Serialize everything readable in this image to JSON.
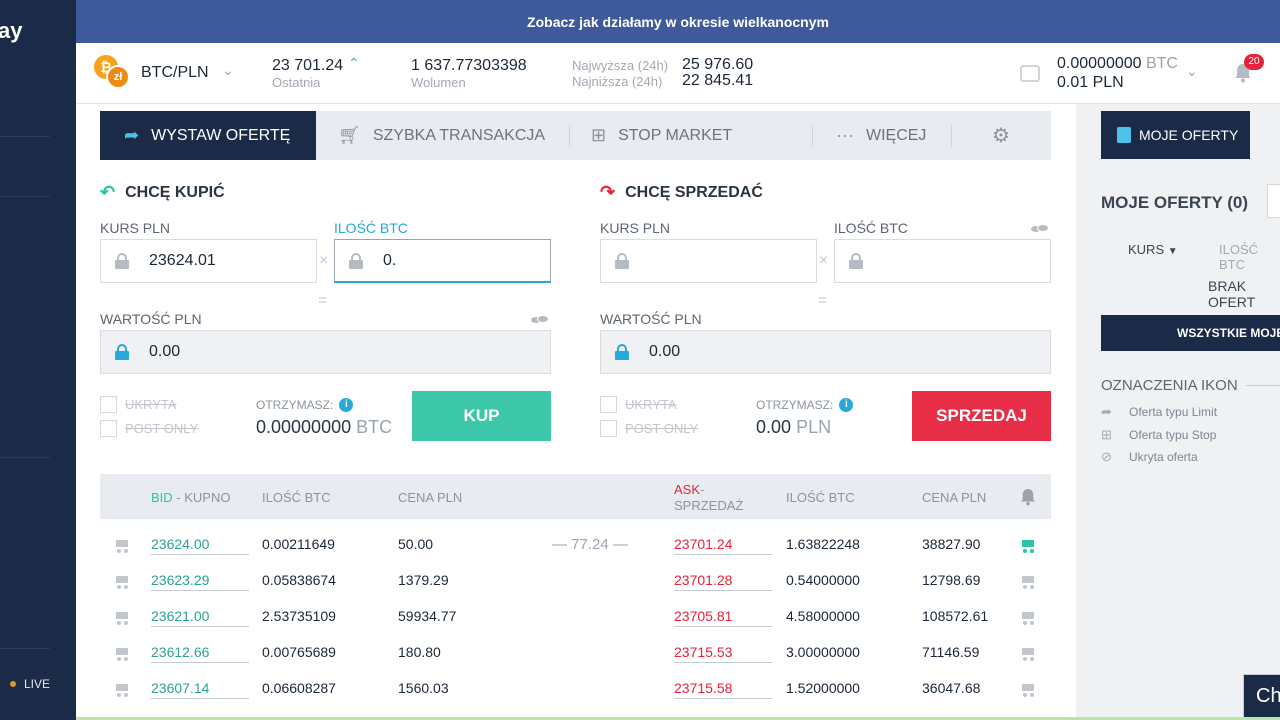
{
  "sidebar": {
    "brand": "ay",
    "live": "LIVE"
  },
  "banner": {
    "text": "Zobacz jak działamy w okresie wielkanocnym"
  },
  "ticker": {
    "pair": "BTC/PLN",
    "last_value": "23 701.24",
    "last_label": "Ostatnia",
    "volume_value": "1 637.77303398",
    "volume_label": "Wolumen",
    "high_label": "Najwyższa (24h)",
    "high_value": "25 976.60",
    "low_label": "Najniższa (24h)",
    "low_value": "22 845.41",
    "balance_btc": "0.00000000",
    "balance_btc_unit": "BTC",
    "balance_pln": "0.01",
    "balance_pln_unit": "PLN",
    "notifications": "20"
  },
  "tabs": {
    "place_offer": "WYSTAW OFERTĘ",
    "quick": "SZYBKA TRANSAKCJA",
    "stop": "STOP MARKET",
    "more": "WIĘCEJ"
  },
  "buy": {
    "title": "CHCĘ KUPIĆ",
    "rate_label": "KURS PLN",
    "rate_value": "23624.01",
    "amount_label": "ILOŚĆ BTC",
    "amount_value": "0.",
    "value_label": "WARTOŚĆ PLN",
    "value_value": "0.00",
    "hidden": "UKRYTA",
    "post_only": "POST ONLY",
    "receive_label": "OTRZYMASZ:",
    "receive_value": "0.00000000",
    "receive_unit": "BTC",
    "button": "KUP"
  },
  "sell": {
    "title": "CHCĘ SPRZEDAĆ",
    "rate_label": "KURS PLN",
    "amount_label": "ILOŚĆ BTC",
    "value_label": "WARTOŚĆ PLN",
    "value_value": "0.00",
    "hidden": "UKRYTA",
    "post_only": "POST ONLY",
    "receive_label": "OTRZYMASZ:",
    "receive_value": "0.00",
    "receive_unit": "PLN",
    "button": "SPRZEDAJ"
  },
  "orderbook": {
    "headers": {
      "bid": "BID",
      "bid_sub": " - KUPNO",
      "bid_amount": "ILOŚĆ BTC",
      "bid_price": "CENA PLN",
      "ask": "ASK",
      "ask_sub": "- SPRZEDAŻ",
      "ask_amount": "ILOŚĆ BTC",
      "ask_price": "CENA PLN"
    },
    "spread": "77.24",
    "rows": [
      {
        "bid": "23624.00",
        "bid_amount": "0.00211649",
        "bid_total": "50.00",
        "ask": "23701.24",
        "ask_amount": "1.63822248",
        "ask_total": "38827.90"
      },
      {
        "bid": "23623.29",
        "bid_amount": "0.05838674",
        "bid_total": "1379.29",
        "ask": "23701.28",
        "ask_amount": "0.54000000",
        "ask_total": "12798.69"
      },
      {
        "bid": "23621.00",
        "bid_amount": "2.53735109",
        "bid_total": "59934.77",
        "ask": "23705.81",
        "ask_amount": "4.58000000",
        "ask_total": "108572.61"
      },
      {
        "bid": "23612.66",
        "bid_amount": "0.00765689",
        "bid_total": "180.80",
        "ask": "23715.53",
        "ask_amount": "3.00000000",
        "ask_total": "71146.59"
      },
      {
        "bid": "23607.14",
        "bid_amount": "0.06608287",
        "bid_total": "1560.03",
        "ask": "23715.58",
        "ask_amount": "1.52000000",
        "ask_total": "36047.68"
      }
    ]
  },
  "right_panel": {
    "tab": "MOJE OFERTY",
    "title": "MOJE OFERTY (0)",
    "col_rate": "KURS",
    "col_amount": "ILOŚĆ BTC",
    "empty": "BRAK OFERT",
    "all_button": "WSZYSTKIE MOJE",
    "icons_title": "OZNACZENIA IKON",
    "legend": [
      "Oferta typu Limit",
      "Oferta typu Stop",
      "Ukryta oferta"
    ]
  },
  "chat": {
    "label": "Ch"
  }
}
